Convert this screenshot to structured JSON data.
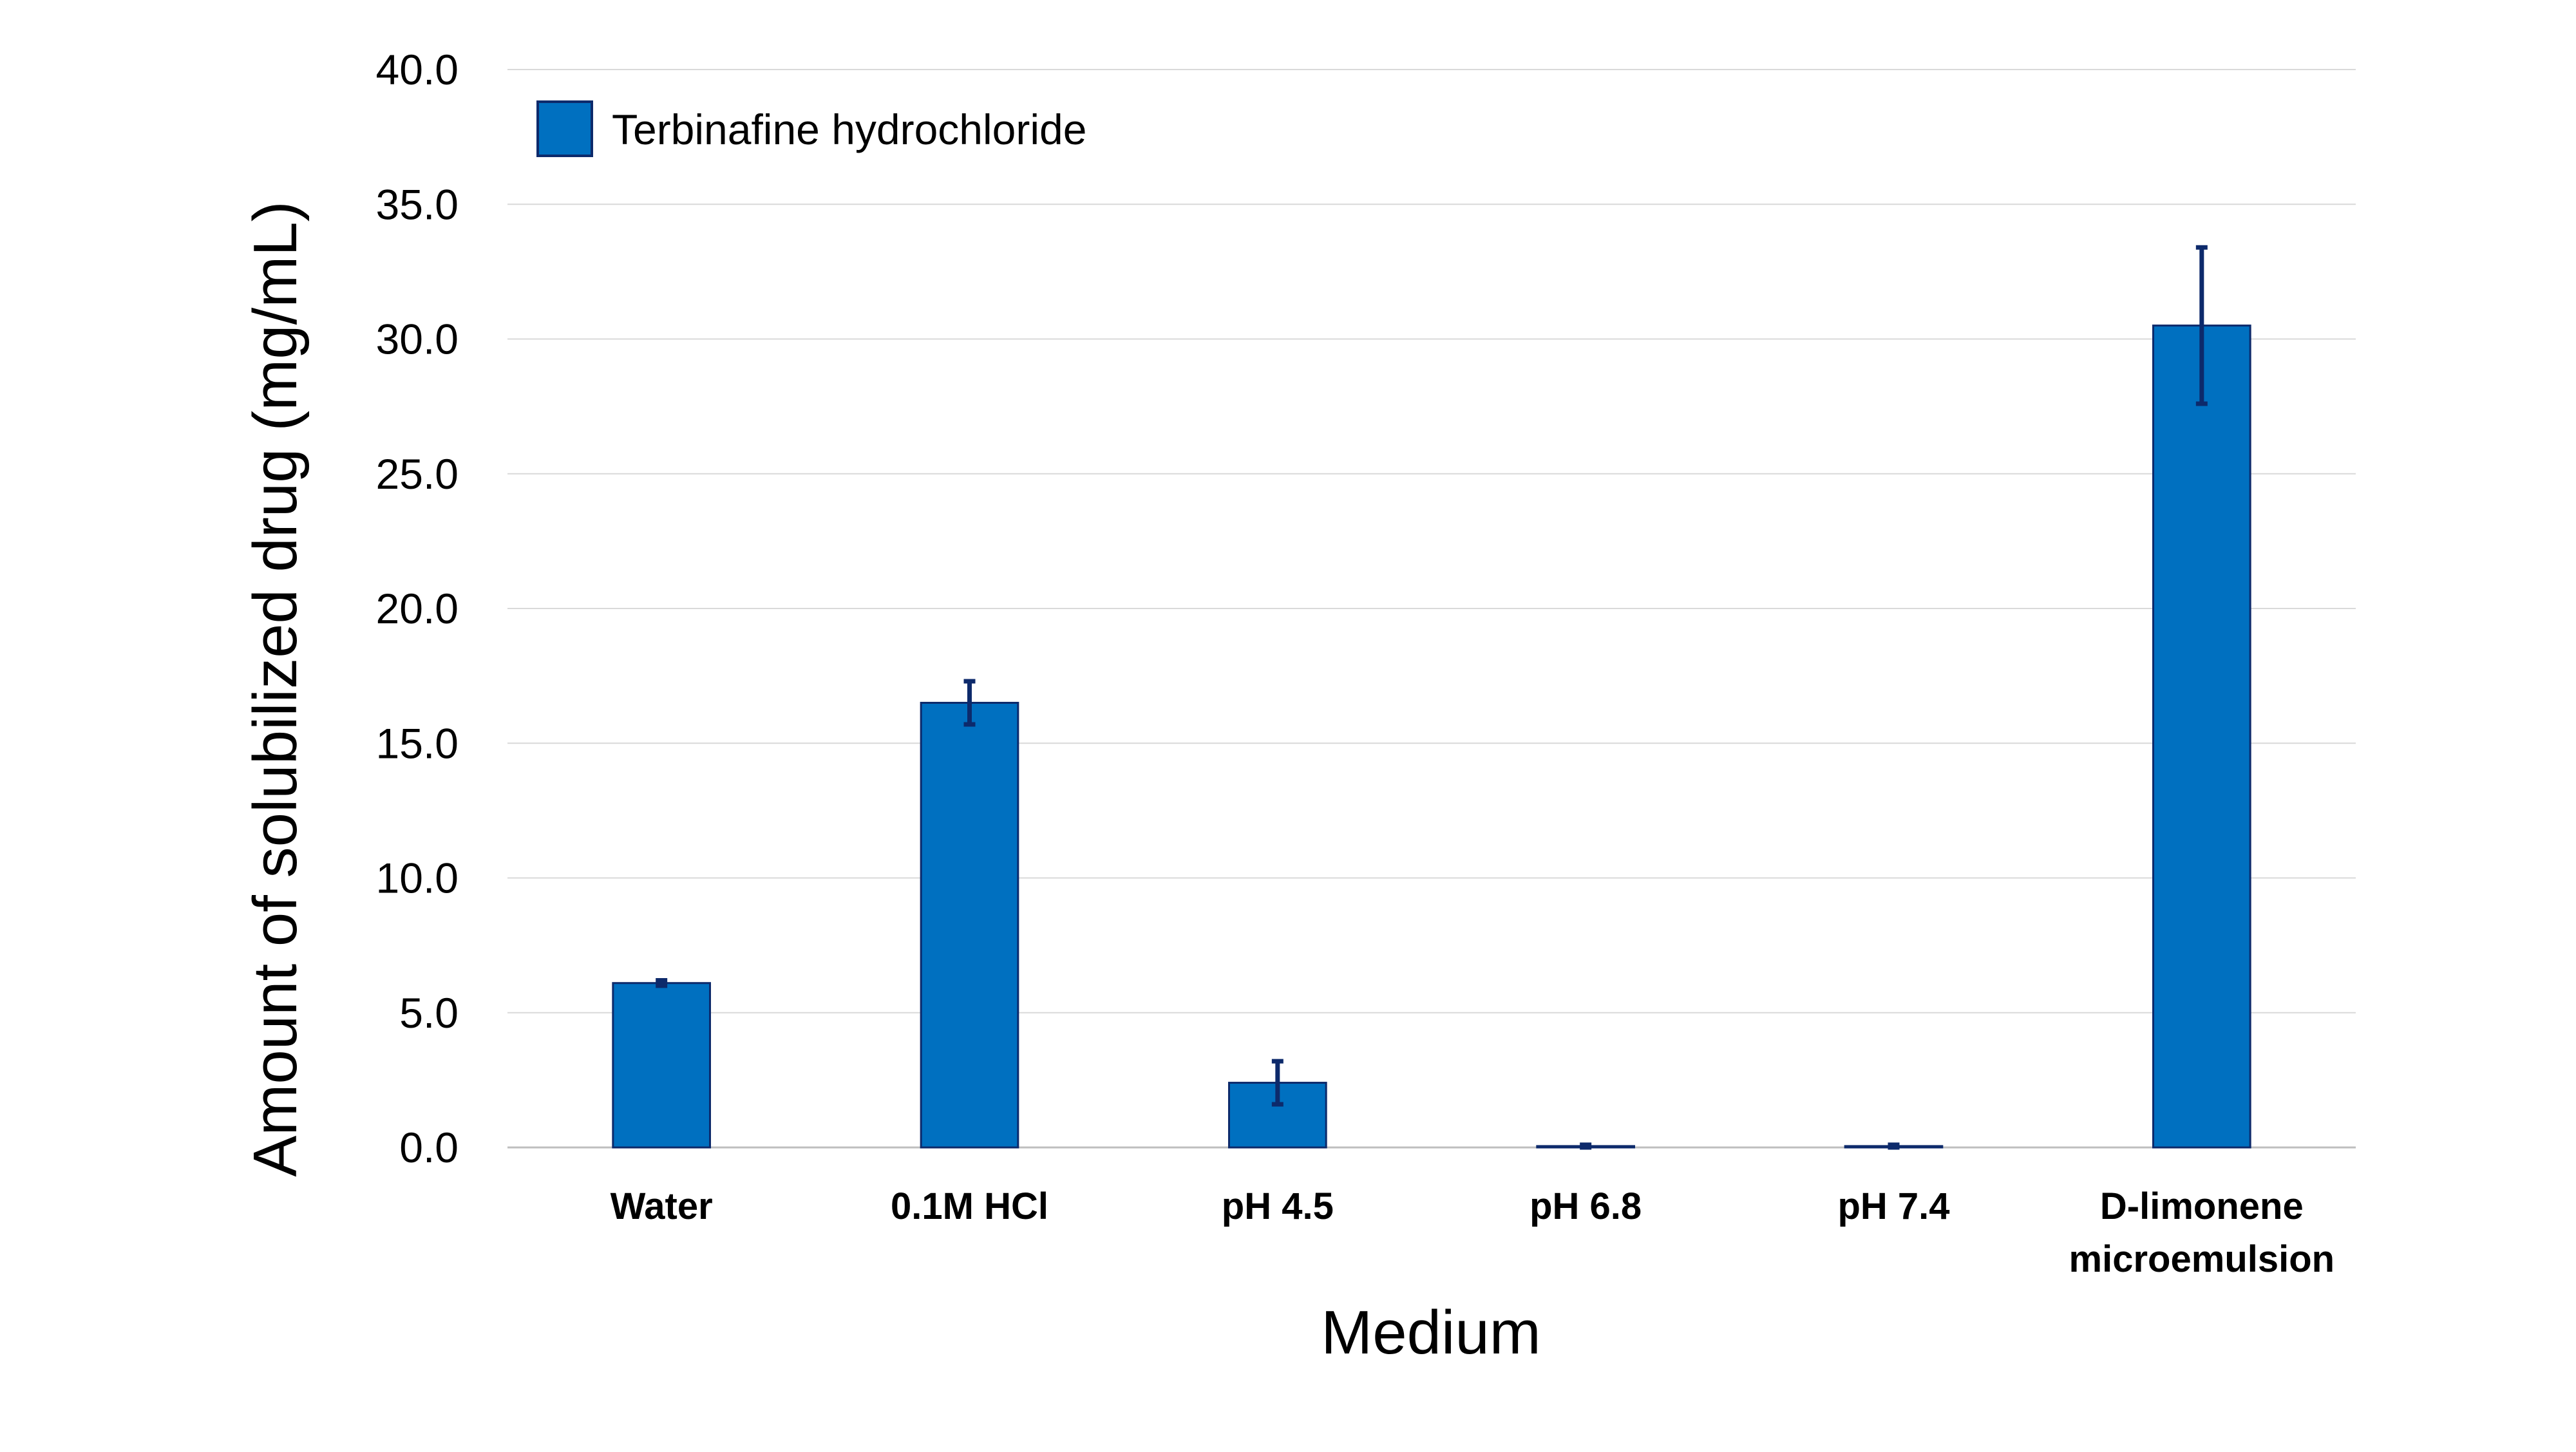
{
  "chart_data": {
    "type": "bar",
    "title": "",
    "xlabel": "Medium",
    "ylabel": "Amount of solubilized drug (mg/mL)",
    "categories": [
      [
        "Water"
      ],
      [
        "0.1M HCl"
      ],
      [
        "pH 4.5"
      ],
      [
        "pH 6.8"
      ],
      [
        "pH 7.4"
      ],
      [
        "D-limonene",
        "microemulsion"
      ]
    ],
    "series": [
      {
        "name": "Terbinafine hydrochloride",
        "values": [
          6.1,
          16.5,
          2.4,
          0.05,
          0.05,
          30.5
        ],
        "errors": [
          0.1,
          0.8,
          0.8,
          0.05,
          0.05,
          2.9
        ],
        "color": "#0070C0"
      }
    ],
    "error_bar_color": "#0D2A6B",
    "ylim": [
      0,
      40
    ],
    "yticks": [
      "0.0",
      "5.0",
      "10.0",
      "15.0",
      "20.0",
      "25.0",
      "30.0",
      "35.0",
      "40.0"
    ],
    "ytick_values": [
      0,
      5,
      10,
      15,
      20,
      25,
      30,
      35,
      40
    ],
    "grid": true,
    "legend_position": "top-left"
  }
}
